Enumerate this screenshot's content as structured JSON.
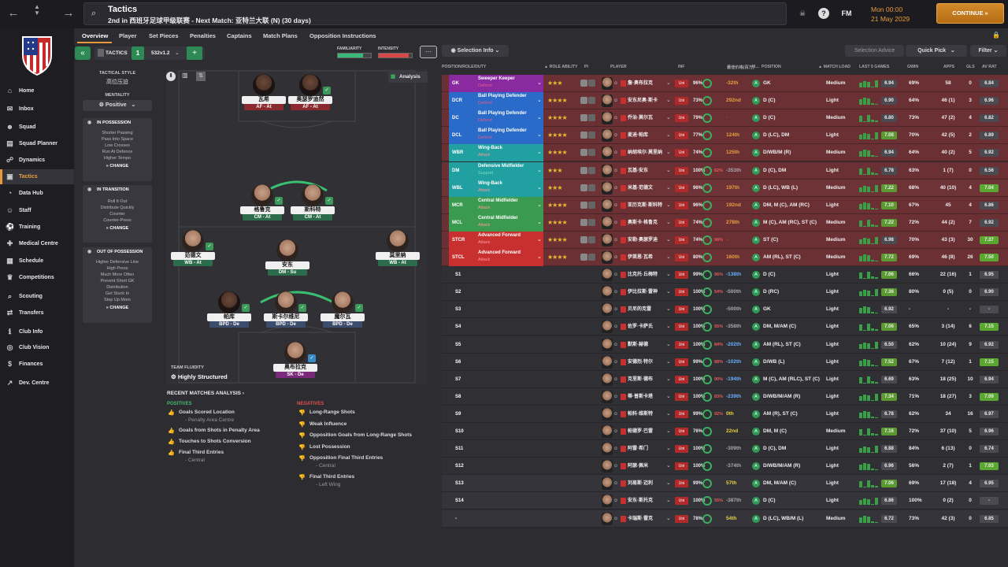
{
  "header": {
    "title": "Tactics",
    "subtitle": "2nd in 西班牙足球甲级联赛 - Next Match: 亚特兰大联 (N) (30 days)",
    "fm_label": "FM",
    "date_time": "Mon 00:00",
    "date": "21 May 2029",
    "continue_label": "CONTINUE"
  },
  "sidebar": {
    "items": [
      {
        "label": "Home",
        "icon": "home-icon"
      },
      {
        "label": "Inbox",
        "icon": "inbox-icon"
      },
      {
        "label": "Squad",
        "icon": "squad-icon"
      },
      {
        "label": "Squad Planner",
        "icon": "planner-icon"
      },
      {
        "label": "Dynamics",
        "icon": "dynamics-icon"
      },
      {
        "label": "Tactics",
        "icon": "tactics-icon"
      },
      {
        "label": "Data Hub",
        "icon": "data-icon"
      },
      {
        "label": "Staff",
        "icon": "staff-icon"
      },
      {
        "label": "Training",
        "icon": "training-icon"
      },
      {
        "label": "Medical Centre",
        "icon": "medical-icon"
      },
      {
        "label": "Schedule",
        "icon": "schedule-icon"
      },
      {
        "label": "Competitions",
        "icon": "trophy-icon"
      },
      {
        "label": "Scouting",
        "icon": "scouting-icon"
      },
      {
        "label": "Transfers",
        "icon": "transfers-icon"
      },
      {
        "label": "Club Info",
        "icon": "info-icon"
      },
      {
        "label": "Club Vision",
        "icon": "vision-icon"
      },
      {
        "label": "Finances",
        "icon": "finances-icon"
      },
      {
        "label": "Dev. Centre",
        "icon": "dev-icon"
      }
    ]
  },
  "tabs": [
    "Overview",
    "Player",
    "Set Pieces",
    "Penalties",
    "Captains",
    "Match Plans",
    "Opposition Instructions"
  ],
  "toolbar": {
    "tactics_label": "TACTICS",
    "slot": "1",
    "formation": "532v1.2",
    "familiarity_label": "FAMILIARITY",
    "intensity_label": "INTENSITY",
    "selection_info": "Selection Info",
    "selection_advice": "Selection Advice",
    "quick_pick": "Quick Pick",
    "filter": "Filter",
    "analysis": "Analysis"
  },
  "left_panel": {
    "tactical_style_label": "TACTICAL STYLE",
    "tactical_style": "高位压迫",
    "mentality_label": "MENTALITY",
    "mentality": "Positive",
    "in_possession": {
      "title": "IN POSSESSION",
      "lines": [
        "Shorter Passing",
        "Pass Into Space",
        "Low Crosses",
        "Run At Defence",
        "Higher Tempo"
      ],
      "change": "CHANGE"
    },
    "in_transition": {
      "title": "IN TRANSITION",
      "lines": [
        "Roll It Out",
        "Distribute Quickly",
        "Counter",
        "Counter-Press"
      ],
      "change": "CHANGE"
    },
    "out_of_possession": {
      "title": "OUT OF POSSESSION",
      "lines": [
        "Higher Defensive Line",
        "High Press",
        "Much More Often",
        "Prevent Short GK",
        "Distribution",
        "Get Stuck In",
        "Step Up More"
      ],
      "change": "CHANGE"
    }
  },
  "pitch": {
    "players": [
      {
        "name": "瓦希",
        "role": "AF - At",
        "cls": "att",
        "badge": "",
        "dark": true
      },
      {
        "name": "奥瑟罗迪然",
        "role": "AF - At",
        "cls": "att",
        "badge": "green",
        "dark": true
      },
      {
        "name": "格鲁克",
        "role": "CM - At",
        "cls": "sup",
        "badge": "green",
        "dark": false
      },
      {
        "name": "斯科特",
        "role": "CM - At",
        "cls": "sup",
        "badge": "green",
        "dark": false
      },
      {
        "name": "范德文",
        "role": "WB - At",
        "cls": "sup",
        "badge": "green",
        "dark": false
      },
      {
        "name": "安东",
        "role": "DM - Su",
        "cls": "sup",
        "badge": "",
        "dark": false
      },
      {
        "name": "莫里纳",
        "role": "WB - At",
        "cls": "sup",
        "badge": "",
        "dark": false
      },
      {
        "name": "帕库",
        "role": "BPD - De",
        "cls": "def",
        "badge": "green",
        "dark": true
      },
      {
        "name": "斯卡尔维尼",
        "role": "BPD - De",
        "cls": "def",
        "badge": "green",
        "dark": false
      },
      {
        "name": "魔尔瓦",
        "role": "BPD - De",
        "cls": "def",
        "badge": "green",
        "dark": false
      },
      {
        "name": "奥布拉克",
        "role": "SK - De",
        "cls": "gk",
        "badge": "blue",
        "dark": false
      }
    ],
    "team_fluidity_label": "TEAM FLUIDITY",
    "team_fluidity": "Highly Structured"
  },
  "analysis": {
    "title": "RECENT MATCHES ANALYSIS",
    "positives_label": "POSITIVES",
    "negatives_label": "NEGATIVES",
    "positives": [
      {
        "text": "Goals Scored Location",
        "sub": "- Penalty Area Centre"
      },
      {
        "text": "Goals from Shots in Penalty Area",
        "sub": ""
      },
      {
        "text": "Touches to Shots Conversion",
        "sub": ""
      },
      {
        "text": "Final Third Entries",
        "sub": "- Central"
      }
    ],
    "negatives": [
      {
        "text": "Long-Range Shots",
        "sub": ""
      },
      {
        "text": "Weak Influence",
        "sub": ""
      },
      {
        "text": "Opposition Goals from Long-Range Shots",
        "sub": ""
      },
      {
        "text": "Lost Possession",
        "sub": ""
      },
      {
        "text": "Opposition Final Third Entries",
        "sub": "- Central"
      },
      {
        "text": "Final Third Entries",
        "sub": "- Left Wing"
      }
    ]
  },
  "table": {
    "headers": {
      "position": "POSITION/ROLE/DUTY",
      "role_ability": "ROLE ABILITY",
      "pi": "PI",
      "player": "PLAYER",
      "inf": "INF",
      "value": "最佳价格(百万)",
      "m": "M...",
      "position2": "POSITION",
      "match_load": "MATCH LOAD",
      "last5": "LAST 5 GAMES",
      "gwin": "GWIN",
      "apps": "APPS",
      "gls": "GLS",
      "avrat": "AV RAT"
    },
    "rows": [
      {
        "code": "GK",
        "role": "Sweeper Keeper",
        "duty": "Defend",
        "color": "#8a2aa0",
        "dutycolor": "#e85a8a",
        "stars": "★★★",
        "player": "詹·奥布拉克",
        "cond": "96%",
        "sharp": "",
        "val": "-32th",
        "valcolor": "#e8a040",
        "pdot": "A",
        "pos": "GK",
        "load": "Medium",
        "last": "6.94",
        "lasthi": false,
        "gwin": "69%",
        "apps": "58",
        "gls": "0",
        "av": "6.84",
        "avhi": false
      },
      {
        "code": "DCR",
        "role": "Ball Playing Defender",
        "duty": "Defend",
        "color": "#2a6ac8",
        "dutycolor": "#e85a8a",
        "stars": "★★★★",
        "player": "安东尼奥·斯卡",
        "cond": "73%",
        "sharp": "",
        "val": "292nd",
        "valcolor": "#e8a040",
        "pdot": "A",
        "pos": "D (C)",
        "load": "Light",
        "last": "6.90",
        "lasthi": false,
        "gwin": "64%",
        "apps": "46 (1)",
        "gls": "3",
        "av": "6.96",
        "avhi": false
      },
      {
        "code": "DC",
        "role": "Ball Playing Defender",
        "duty": "Defend",
        "color": "#2a6ac8",
        "dutycolor": "#e85a8a",
        "stars": "★★★★",
        "player": "乔治·莫尔瓦",
        "cond": "79%",
        "sharp": "",
        "val": "-",
        "valcolor": "#e04040",
        "pdot": "A",
        "pos": "D (C)",
        "load": "Medium",
        "last": "6.80",
        "lasthi": false,
        "gwin": "73%",
        "apps": "47 (2)",
        "gls": "4",
        "av": "6.82",
        "avhi": false
      },
      {
        "code": "DCL",
        "role": "Ball Playing Defender",
        "duty": "Defend",
        "color": "#2a6ac8",
        "dutycolor": "#e85a8a",
        "stars": "★★★★",
        "player": "麦迪·帕库",
        "cond": "77%",
        "sharp": "",
        "val": "124th",
        "valcolor": "#e8a040",
        "pdot": "A",
        "pos": "D (LC), DM",
        "load": "Light",
        "last": "7.08",
        "lasthi": true,
        "gwin": "70%",
        "apps": "42 (5)",
        "gls": "2",
        "av": "6.89",
        "avhi": false
      },
      {
        "code": "WBR",
        "role": "Wing-Back",
        "duty": "Attack",
        "color": "#20a0a0",
        "dutycolor": "#ff9a9a",
        "stars": "★★★★",
        "player": "纳胡埃尔·莫里纳",
        "cond": "74%",
        "sharp": "",
        "val": "125th",
        "valcolor": "#e8a040",
        "pdot": "A",
        "pos": "D/WB/M (R)",
        "load": "Medium",
        "last": "6.94",
        "lasthi": false,
        "gwin": "64%",
        "apps": "40 (2)",
        "gls": "5",
        "av": "6.92",
        "avhi": false
      },
      {
        "code": "DM",
        "role": "Defensive Midfielder",
        "duty": "Support",
        "color": "#20a0a0",
        "dutycolor": "#7ae0c0",
        "stars": "★★★",
        "player": "瓦基-安东",
        "cond": "100%",
        "sharp": "62%",
        "val": "-353th",
        "valcolor": "#aaa",
        "pdot": "A",
        "pos": "D (C), DM",
        "load": "Light",
        "last": "6.78",
        "lasthi": false,
        "gwin": "63%",
        "apps": "1 (7)",
        "gls": "0",
        "av": "6.56",
        "avhi": false
      },
      {
        "code": "WBL",
        "role": "Wing-Back",
        "duty": "Attack",
        "color": "#20a0a0",
        "dutycolor": "#ff9a9a",
        "stars": "★★★",
        "player": "米基·范德文",
        "cond": "96%",
        "sharp": "",
        "val": "197th",
        "valcolor": "#e8a040",
        "pdot": "A",
        "pos": "D (LC), WB (L)",
        "load": "Medium",
        "last": "7.22",
        "lasthi": true,
        "gwin": "68%",
        "apps": "40 (10)",
        "gls": "4",
        "av": "7.04",
        "avhi": true
      },
      {
        "code": "MCR",
        "role": "Central Midfielder",
        "duty": "Attack",
        "color": "#3a9a50",
        "dutycolor": "#ff9a9a",
        "stars": "★★★★",
        "player": "亚历克斯·斯科特",
        "cond": "96%",
        "sharp": "",
        "val": "192nd",
        "valcolor": "#e8a040",
        "pdot": "A",
        "pos": "DM, M (C), AM (RC)",
        "load": "Light",
        "last": "7.10",
        "lasthi": true,
        "gwin": "67%",
        "apps": "45",
        "gls": "4",
        "av": "6.86",
        "avhi": false
      },
      {
        "code": "MCL",
        "role": "Central Midfielder",
        "duty": "Attack",
        "color": "#3a9a50",
        "dutycolor": "#ff9a9a",
        "stars": "★★★★",
        "player": "奥斯卡·格鲁克",
        "cond": "74%",
        "sharp": "",
        "val": "278th",
        "valcolor": "#e8a040",
        "pdot": "A",
        "pos": "M (C), AM (RC), ST (C)",
        "load": "Medium",
        "last": "7.22",
        "lasthi": true,
        "gwin": "72%",
        "apps": "44 (2)",
        "gls": "7",
        "av": "6.92",
        "avhi": false
      },
      {
        "code": "STCR",
        "role": "Advanced Forward",
        "duty": "Attack",
        "color": "#c83030",
        "dutycolor": "#ff9a9a",
        "stars": "★★★★",
        "player": "安勒·奥瑟罗迪",
        "cond": "74%",
        "sharp": "98%",
        "val": "-",
        "valcolor": "#e04040",
        "pdot": "A",
        "pos": "ST (C)",
        "load": "Medium",
        "last": "6.98",
        "lasthi": false,
        "gwin": "70%",
        "apps": "43 (3)",
        "gls": "30",
        "av": "7.37",
        "avhi": true
      },
      {
        "code": "STCL",
        "role": "Advanced Forward",
        "duty": "Attack",
        "color": "#c83030",
        "dutycolor": "#ff9a9a",
        "stars": "★★★★",
        "player": "伊莱恩·瓦希",
        "cond": "80%",
        "sharp": "",
        "val": "160th",
        "valcolor": "#e8a040",
        "pdot": "A",
        "pos": "AM (RL), ST (C)",
        "load": "Medium",
        "last": "7.72",
        "lasthi": true,
        "gwin": "69%",
        "apps": "46 (8)",
        "gls": "26",
        "av": "7.50",
        "avhi": true
      },
      {
        "code": "S1",
        "role": "",
        "duty": "",
        "color": "",
        "dutycolor": "",
        "stars": "",
        "player": "比克托·丘梅特",
        "cond": "99%",
        "sharp": "96%",
        "val": "-138th",
        "valcolor": "#6ab0ff",
        "pdot": "A",
        "pos": "D (C)",
        "load": "Light",
        "last": "7.06",
        "lasthi": true,
        "gwin": "66%",
        "apps": "22 (16)",
        "gls": "1",
        "av": "6.95",
        "avhi": false
      },
      {
        "code": "S2",
        "role": "",
        "duty": "",
        "color": "",
        "dutycolor": "",
        "stars": "",
        "player": "伊比拉斯·雷神",
        "cond": "100%",
        "sharp": "54%",
        "val": "-500th",
        "valcolor": "#aaa",
        "pdot": "A",
        "pos": "D (RC)",
        "load": "Light",
        "last": "7.36",
        "lasthi": true,
        "gwin": "80%",
        "apps": "0 (5)",
        "gls": "0",
        "av": "6.90",
        "avhi": false
      },
      {
        "code": "S3",
        "role": "",
        "duty": "",
        "color": "",
        "dutycolor": "",
        "stars": "",
        "player": "贝尼的克雷",
        "cond": "100%",
        "sharp": "",
        "val": "-500th",
        "valcolor": "#aaa",
        "pdot": "A",
        "pos": "GK",
        "load": "Light",
        "last": "6.92",
        "lasthi": false,
        "gwin": "-",
        "apps": "-",
        "gls": "-",
        "av": "-",
        "avhi": false
      },
      {
        "code": "S4",
        "role": "",
        "duty": "",
        "color": "",
        "dutycolor": "",
        "stars": "",
        "player": "佐罗·卡萨氏",
        "cond": "100%",
        "sharp": "55%",
        "val": "-358th",
        "valcolor": "#aaa",
        "pdot": "A",
        "pos": "DM, M/AM (C)",
        "load": "Light",
        "last": "7.06",
        "lasthi": true,
        "gwin": "65%",
        "apps": "3 (14)",
        "gls": "6",
        "av": "7.15",
        "avhi": true
      },
      {
        "code": "S5",
        "role": "",
        "duty": "",
        "color": "",
        "dutycolor": "",
        "stars": "",
        "player": "默斯·赫德",
        "cond": "100%",
        "sharp": "84%",
        "val": "-202th",
        "valcolor": "#6ab0ff",
        "pdot": "A",
        "pos": "AM (RL), ST (C)",
        "load": "Light",
        "last": "6.50",
        "lasthi": false,
        "gwin": "62%",
        "apps": "10 (24)",
        "gls": "9",
        "av": "6.92",
        "avhi": false
      },
      {
        "code": "S6",
        "role": "",
        "duty": "",
        "color": "",
        "dutycolor": "",
        "stars": "",
        "player": "安德烈·特尔",
        "cond": "99%",
        "sharp": "88%",
        "val": "-102th",
        "valcolor": "#6ab0ff",
        "pdot": "A",
        "pos": "D/WB (L)",
        "load": "Light",
        "last": "7.52",
        "lasthi": true,
        "gwin": "67%",
        "apps": "7 (12)",
        "gls": "1",
        "av": "7.15",
        "avhi": true
      },
      {
        "code": "S7",
        "role": "",
        "duty": "",
        "color": "",
        "dutycolor": "",
        "stars": "",
        "player": "克里斯·德布",
        "cond": "100%",
        "sharp": "90%",
        "val": "-194th",
        "valcolor": "#6ab0ff",
        "pdot": "A",
        "pos": "M (C), AM (RLC), ST (C)",
        "load": "Light",
        "last": "6.69",
        "lasthi": false,
        "gwin": "63%",
        "apps": "18 (25)",
        "gls": "10",
        "av": "6.94",
        "avhi": false
      },
      {
        "code": "S8",
        "role": "",
        "duty": "",
        "color": "",
        "dutycolor": "",
        "stars": "",
        "player": "蒂·普斯卡塔",
        "cond": "100%",
        "sharp": "83%",
        "val": "-239th",
        "valcolor": "#6ab0ff",
        "pdot": "A",
        "pos": "D/WB/M/AM (R)",
        "load": "Light",
        "last": "7.34",
        "lasthi": true,
        "gwin": "71%",
        "apps": "18 (27)",
        "gls": "3",
        "av": "7.09",
        "avhi": true
      },
      {
        "code": "S9",
        "role": "",
        "duty": "",
        "color": "",
        "dutycolor": "",
        "stars": "",
        "player": "帕科·维斯特",
        "cond": "99%",
        "sharp": "92%",
        "val": "0th",
        "valcolor": "#e8d040",
        "pdot": "A",
        "pos": "AM (R), ST (C)",
        "load": "Light",
        "last": "6.78",
        "lasthi": false,
        "gwin": "62%",
        "apps": "34",
        "gls": "16",
        "av": "6.97",
        "avhi": false
      },
      {
        "code": "S10",
        "role": "",
        "duty": "",
        "color": "",
        "dutycolor": "",
        "stars": "",
        "player": "帕德罗·巴雷",
        "cond": "76%",
        "sharp": "",
        "val": "22nd",
        "valcolor": "#e8d040",
        "pdot": "A",
        "pos": "DM, M (C)",
        "load": "Medium",
        "last": "7.16",
        "lasthi": true,
        "gwin": "72%",
        "apps": "37 (10)",
        "gls": "5",
        "av": "6.96",
        "avhi": false
      },
      {
        "code": "S11",
        "role": "",
        "duty": "",
        "color": "",
        "dutycolor": "",
        "stars": "",
        "player": "阿雷·希门",
        "cond": "100%",
        "sharp": "",
        "val": "-309th",
        "valcolor": "#aaa",
        "pdot": "A",
        "pos": "D (C), DM",
        "load": "Light",
        "last": "6.88",
        "lasthi": false,
        "gwin": "84%",
        "apps": "6 (13)",
        "gls": "0",
        "av": "6.74",
        "avhi": false
      },
      {
        "code": "S12",
        "role": "",
        "duty": "",
        "color": "",
        "dutycolor": "",
        "stars": "",
        "player": "阿瑟·佩米",
        "cond": "100%",
        "sharp": "",
        "val": "-374th",
        "valcolor": "#aaa",
        "pdot": "A",
        "pos": "D/WB/M/AM (R)",
        "load": "Light",
        "last": "6.96",
        "lasthi": false,
        "gwin": "56%",
        "apps": "2 (7)",
        "gls": "1",
        "av": "7.03",
        "avhi": true
      },
      {
        "code": "S13",
        "role": "",
        "duty": "",
        "color": "",
        "dutycolor": "",
        "stars": "",
        "player": "刘易斯·迈利",
        "cond": "99%",
        "sharp": "",
        "val": "57th",
        "valcolor": "#e8d040",
        "pdot": "A",
        "pos": "DM, M/AM (C)",
        "load": "Light",
        "last": "7.06",
        "lasthi": true,
        "gwin": "69%",
        "apps": "17 (18)",
        "gls": "4",
        "av": "6.95",
        "avhi": false
      },
      {
        "code": "S14",
        "role": "",
        "duty": "",
        "color": "",
        "dutycolor": "",
        "stars": "",
        "player": "安东·斯托克",
        "cond": "100%",
        "sharp": "55%",
        "val": "-387th",
        "valcolor": "#aaa",
        "pdot": "A",
        "pos": "D (C)",
        "load": "Light",
        "last": "6.86",
        "lasthi": false,
        "gwin": "100%",
        "apps": "0 (2)",
        "gls": "0",
        "av": "-",
        "avhi": false
      },
      {
        "code": "-",
        "role": "",
        "duty": "",
        "color": "",
        "dutycolor": "",
        "stars": "",
        "player": "卡瑞斯·雷克",
        "cond": "78%",
        "sharp": "",
        "val": "54th",
        "valcolor": "#e8d040",
        "pdot": "A",
        "pos": "D (LC), WB/M (L)",
        "load": "Medium",
        "last": "6.72",
        "lasthi": false,
        "gwin": "73%",
        "apps": "42 (3)",
        "gls": "0",
        "av": "6.85",
        "avhi": false
      }
    ]
  }
}
